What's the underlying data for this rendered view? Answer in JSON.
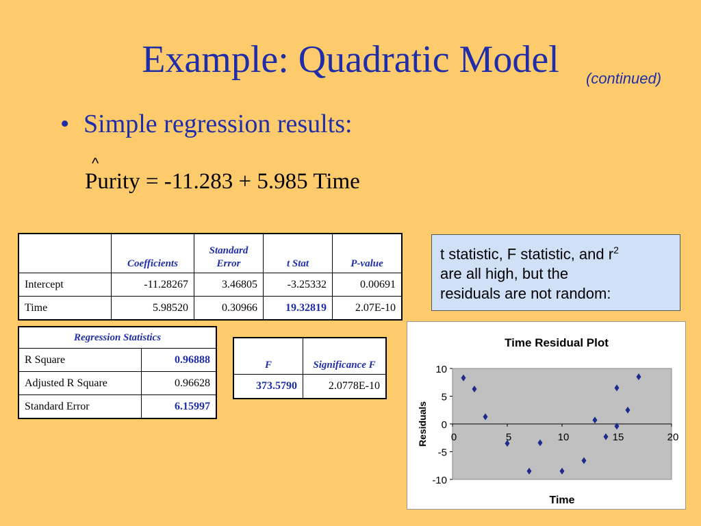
{
  "slide": {
    "title": "Example: Quadratic Model",
    "title_note": "(continued)",
    "bullet_mark": "•",
    "bullet": "Simple regression results:",
    "hat": "^",
    "equation": "Purity = -11.283 + 5.985 Time"
  },
  "coefficients_table": {
    "headers": [
      "",
      "Coefficients",
      "Standard Error",
      "t Stat",
      "P-value"
    ],
    "rows": [
      [
        "Intercept",
        "-11.28267",
        "3.46805",
        "-3.25332",
        "0.00691"
      ],
      [
        "Time",
        "5.98520",
        "0.30966",
        "19.32819",
        "2.07E-10"
      ]
    ]
  },
  "regression_table": {
    "header": "Regression Statistics",
    "rows": [
      [
        "R Square",
        "0.96888"
      ],
      [
        "Adjusted R Square",
        "0.96628"
      ],
      [
        "Standard Error",
        "6.15997"
      ]
    ]
  },
  "f_table": {
    "headers": [
      "F",
      "Significance F"
    ],
    "row": [
      "373.5790",
      "2.0778E-10"
    ]
  },
  "callout": {
    "line1": "t statistic, F statistic, and r",
    "sup": "2",
    "line2": "are all high, but the",
    "line3": "residuals are not random:"
  },
  "colors": {
    "background": "#FDCB6B",
    "title": "#1F2EA8",
    "plot_area": "#C0C0C0",
    "marker": "#1A2C8C",
    "callout": "#CFE0F7"
  },
  "chart_data": {
    "type": "scatter",
    "title": "Time  Residual Plot",
    "xlabel": "Time",
    "ylabel": "Residuals",
    "xlim": [
      0,
      20
    ],
    "ylim": [
      -10,
      10
    ],
    "xticks": [
      "0",
      "5",
      "10",
      "15",
      "20"
    ],
    "yticks": [
      "10",
      "5",
      "0",
      "-5",
      "-10"
    ],
    "grid": false,
    "series": [
      {
        "marker": "diamond",
        "points": [
          [
            1,
            8.3
          ],
          [
            2,
            6.3
          ],
          [
            3,
            1.3
          ],
          [
            5,
            -3.5
          ],
          [
            7,
            -8.5
          ],
          [
            8,
            -3.4
          ],
          [
            10,
            -8.5
          ],
          [
            12,
            -6.6
          ],
          [
            13,
            0.7
          ],
          [
            14,
            -2.3
          ],
          [
            15,
            -0.4
          ],
          [
            15,
            6.5
          ],
          [
            16,
            2.5
          ],
          [
            17,
            8.5
          ]
        ]
      }
    ]
  }
}
